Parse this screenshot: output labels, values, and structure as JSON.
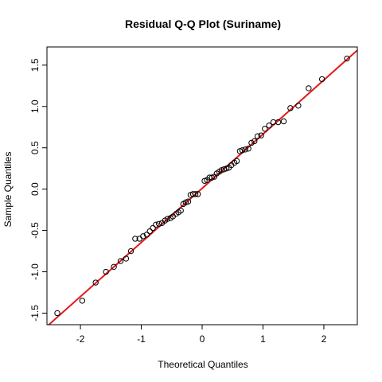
{
  "chart_data": {
    "type": "scatter",
    "title": "Residual Q-Q Plot (Suriname)",
    "xlabel": "Theoretical Quantiles",
    "ylabel": "Sample Quantiles",
    "xlim": [
      -2.55,
      2.55
    ],
    "ylim": [
      -1.64,
      1.72
    ],
    "x_ticks": [
      -2,
      -1,
      0,
      1,
      2
    ],
    "y_ticks": [
      -1.5,
      -1.0,
      -0.5,
      0.0,
      0.5,
      1.0,
      1.5
    ],
    "x_tick_labels": [
      "-2",
      "-1",
      "0",
      "1",
      "2"
    ],
    "y_tick_labels": [
      "-1.5",
      "-1.0",
      "-0.5",
      "0.0",
      "0.5",
      "1.0",
      "1.5"
    ],
    "grid": false,
    "point_style": "open-circle",
    "point_color": "#000000",
    "line_color": "#e31a1c",
    "reference_line": {
      "slope": 0.655,
      "intercept": 0.01
    },
    "points": [
      [
        -2.38,
        -1.5
      ],
      [
        -1.97,
        -1.35
      ],
      [
        -1.75,
        -1.13
      ],
      [
        -1.58,
        -1.0
      ],
      [
        -1.45,
        -0.94
      ],
      [
        -1.34,
        -0.87
      ],
      [
        -1.25,
        -0.84
      ],
      [
        -1.17,
        -0.75
      ],
      [
        -1.1,
        -0.6
      ],
      [
        -1.03,
        -0.6
      ],
      [
        -0.97,
        -0.57
      ],
      [
        -0.91,
        -0.55
      ],
      [
        -0.86,
        -0.51
      ],
      [
        -0.81,
        -0.47
      ],
      [
        -0.76,
        -0.43
      ],
      [
        -0.71,
        -0.42
      ],
      [
        -0.66,
        -0.41
      ],
      [
        -0.61,
        -0.38
      ],
      [
        -0.57,
        -0.36
      ],
      [
        -0.52,
        -0.35
      ],
      [
        -0.48,
        -0.33
      ],
      [
        -0.43,
        -0.3
      ],
      [
        -0.39,
        -0.28
      ],
      [
        -0.35,
        -0.26
      ],
      [
        -0.31,
        -0.18
      ],
      [
        -0.27,
        -0.16
      ],
      [
        -0.23,
        -0.15
      ],
      [
        -0.19,
        -0.07
      ],
      [
        -0.15,
        -0.06
      ],
      [
        -0.11,
        -0.06
      ],
      [
        -0.07,
        -0.06
      ],
      [
        0.04,
        0.1
      ],
      [
        0.08,
        0.11
      ],
      [
        0.12,
        0.14
      ],
      [
        0.16,
        0.14
      ],
      [
        0.2,
        0.15
      ],
      [
        0.24,
        0.19
      ],
      [
        0.28,
        0.21
      ],
      [
        0.32,
        0.23
      ],
      [
        0.36,
        0.24
      ],
      [
        0.4,
        0.25
      ],
      [
        0.44,
        0.26
      ],
      [
        0.48,
        0.29
      ],
      [
        0.53,
        0.32
      ],
      [
        0.57,
        0.34
      ],
      [
        0.62,
        0.46
      ],
      [
        0.66,
        0.47
      ],
      [
        0.71,
        0.48
      ],
      [
        0.76,
        0.49
      ],
      [
        0.81,
        0.56
      ],
      [
        0.86,
        0.58
      ],
      [
        0.91,
        0.64
      ],
      [
        0.97,
        0.65
      ],
      [
        1.03,
        0.73
      ],
      [
        1.1,
        0.77
      ],
      [
        1.17,
        0.81
      ],
      [
        1.25,
        0.81
      ],
      [
        1.34,
        0.82
      ],
      [
        1.45,
        0.98
      ],
      [
        1.58,
        1.01
      ],
      [
        1.75,
        1.22
      ],
      [
        1.97,
        1.33
      ],
      [
        2.38,
        1.58
      ]
    ]
  }
}
